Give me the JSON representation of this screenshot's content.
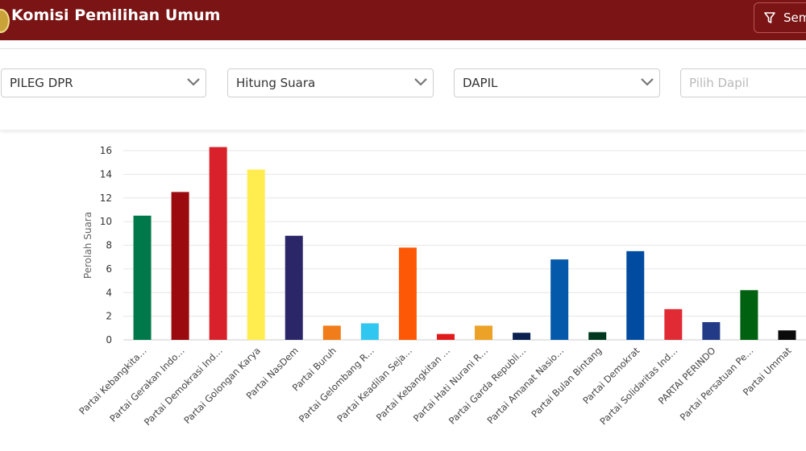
{
  "header": {
    "title": "Komisi Pemilihan Umum",
    "action_label": "Sem",
    "bg_color": "#7b1414"
  },
  "filters": [
    {
      "value": "PILEG DPR",
      "placeholder": ""
    },
    {
      "value": "Hitung Suara",
      "placeholder": ""
    },
    {
      "value": "DAPIL",
      "placeholder": ""
    },
    {
      "value": "",
      "placeholder": "Pilih Dapil"
    }
  ],
  "chart_data": {
    "type": "bar",
    "ylabel": "Perolah Suara",
    "xlabel": "",
    "title": "",
    "ylim": [
      0,
      16
    ],
    "yticks": [
      0,
      2,
      4,
      6,
      8,
      10,
      12,
      14,
      16
    ],
    "grid": true,
    "categories": [
      "Partai Kebangkita…",
      "Partai Gerakan Indo…",
      "Partai Demokrasi Ind…",
      "Partai Golongan Karya",
      "Partai NasDem",
      "Partai Buruh",
      "Partai Gelombang R…",
      "Partai Keadilan Seja…",
      "Partai Kebangkitan …",
      "Partai Hati Nurani R…",
      "Partai Garda Republi…",
      "Partai Amanat Nasio…",
      "Partai Bulan Bintang",
      "Partai Demokrat",
      "Partai Solidaritas Ind…",
      "PARTAI PERINDO",
      "Partai Persatuan Pe…",
      "Partai Ummat"
    ],
    "values": [
      10.5,
      12.5,
      16.3,
      14.4,
      8.8,
      1.2,
      1.4,
      7.8,
      0.5,
      1.2,
      0.6,
      6.8,
      0.65,
      7.5,
      2.6,
      1.5,
      4.2,
      0.8
    ],
    "colors": [
      "#00794a",
      "#9a0a0e",
      "#d8212a",
      "#ffed4f",
      "#2b2668",
      "#f07c1a",
      "#2fc7ef",
      "#fd5806",
      "#e11b1b",
      "#eca226",
      "#0b2150",
      "#0459ab",
      "#013920",
      "#014ba1",
      "#e02b35",
      "#233b86",
      "#006110",
      "#0a0a0a"
    ]
  }
}
